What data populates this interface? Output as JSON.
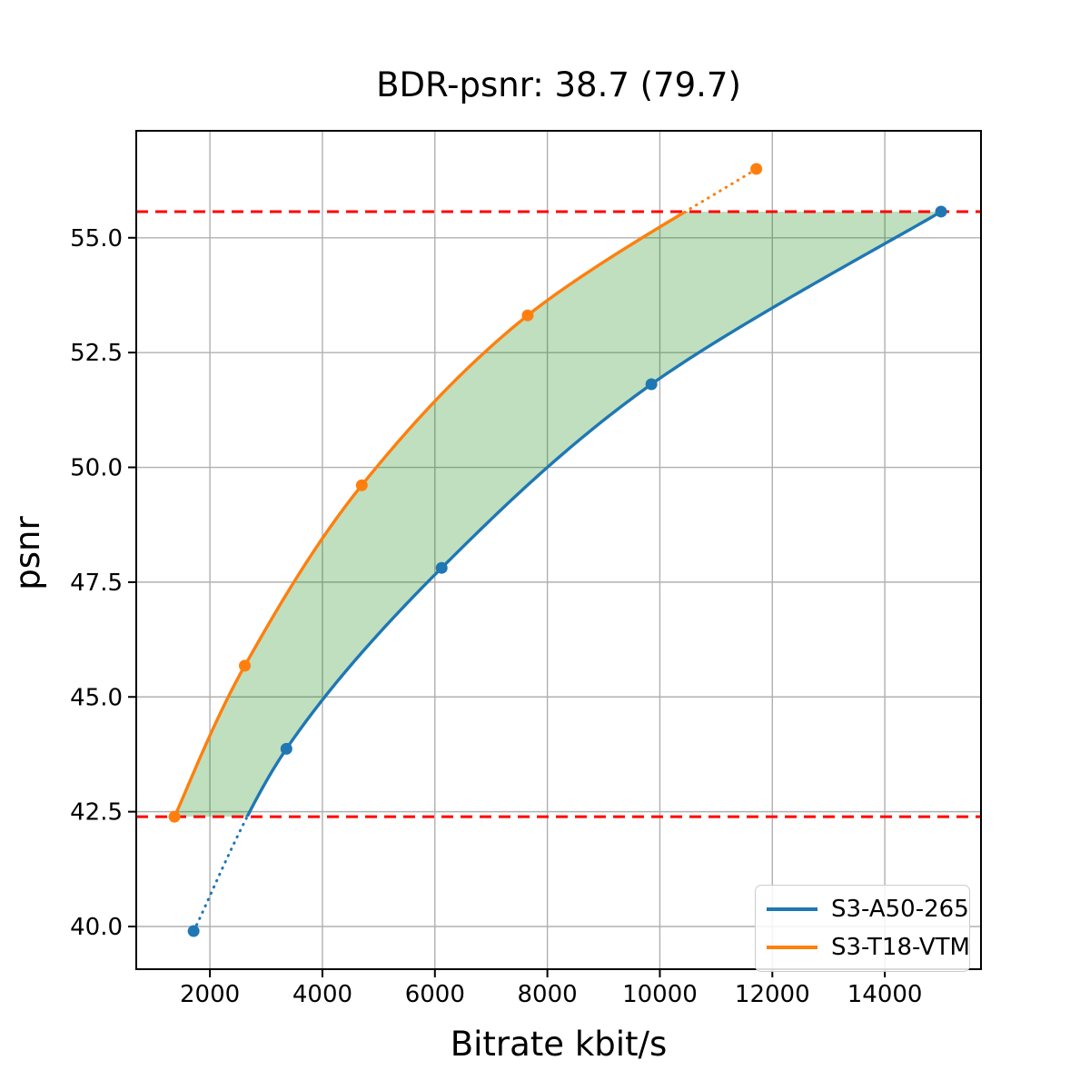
{
  "chart_data": {
    "type": "line",
    "title": "BDR-psnr: 38.7 (79.7)",
    "bdr_value": "38.7",
    "bdr_secondary_value": "79.7",
    "xlabel": "Bitrate kbit/s",
    "ylabel": "psnr",
    "xlim": [
      690,
      15710
    ],
    "ylim": [
      39.07,
      57.33
    ],
    "grid": true,
    "grid_color": "#b0b0b0",
    "axis_color": "#000000",
    "legend_position": "lower right",
    "x_ticks": [
      {
        "value": 2000,
        "label": "2000"
      },
      {
        "value": 4000,
        "label": "4000"
      },
      {
        "value": 6000,
        "label": "6000"
      },
      {
        "value": 8000,
        "label": "8000"
      },
      {
        "value": 10000,
        "label": "10000"
      },
      {
        "value": 12000,
        "label": "12000"
      },
      {
        "value": 14000,
        "label": "14000"
      }
    ],
    "y_ticks": [
      {
        "value": 40.0,
        "label": "40.0"
      },
      {
        "value": 42.5,
        "label": "42.5"
      },
      {
        "value": 45.0,
        "label": "45.0"
      },
      {
        "value": 47.5,
        "label": "47.5"
      },
      {
        "value": 50.0,
        "label": "50.0"
      },
      {
        "value": 52.5,
        "label": "52.5"
      },
      {
        "value": 55.0,
        "label": "55.0"
      }
    ],
    "series": [
      {
        "name": "S3-A50-265",
        "color": "#1f77b4",
        "marker": "circle",
        "points": [
          [
            1710,
            39.9
          ],
          [
            3360,
            43.87
          ],
          [
            6120,
            47.81
          ],
          [
            9850,
            51.81
          ],
          [
            15000,
            55.57
          ]
        ],
        "dotted_region": "below_lower_hline"
      },
      {
        "name": "S3-T18-VTM",
        "color": "#ff7f0e",
        "marker": "circle",
        "points": [
          [
            1370,
            42.39
          ],
          [
            2620,
            45.68
          ],
          [
            4700,
            49.61
          ],
          [
            7650,
            53.31
          ],
          [
            11715,
            56.5
          ]
        ],
        "dotted_region": "above_upper_hline"
      }
    ],
    "hlines": [
      {
        "name": "upper",
        "y": 55.57,
        "color": "#ff0000",
        "style": "dashed"
      },
      {
        "name": "lower",
        "y": 42.39,
        "color": "#ff0000",
        "style": "dashed"
      }
    ],
    "fill_between": {
      "color": "#008000",
      "alpha": 0.25,
      "band": [
        42.39,
        55.57
      ],
      "upper_series": "S3-T18-VTM",
      "lower_series": "S3-A50-265"
    }
  }
}
